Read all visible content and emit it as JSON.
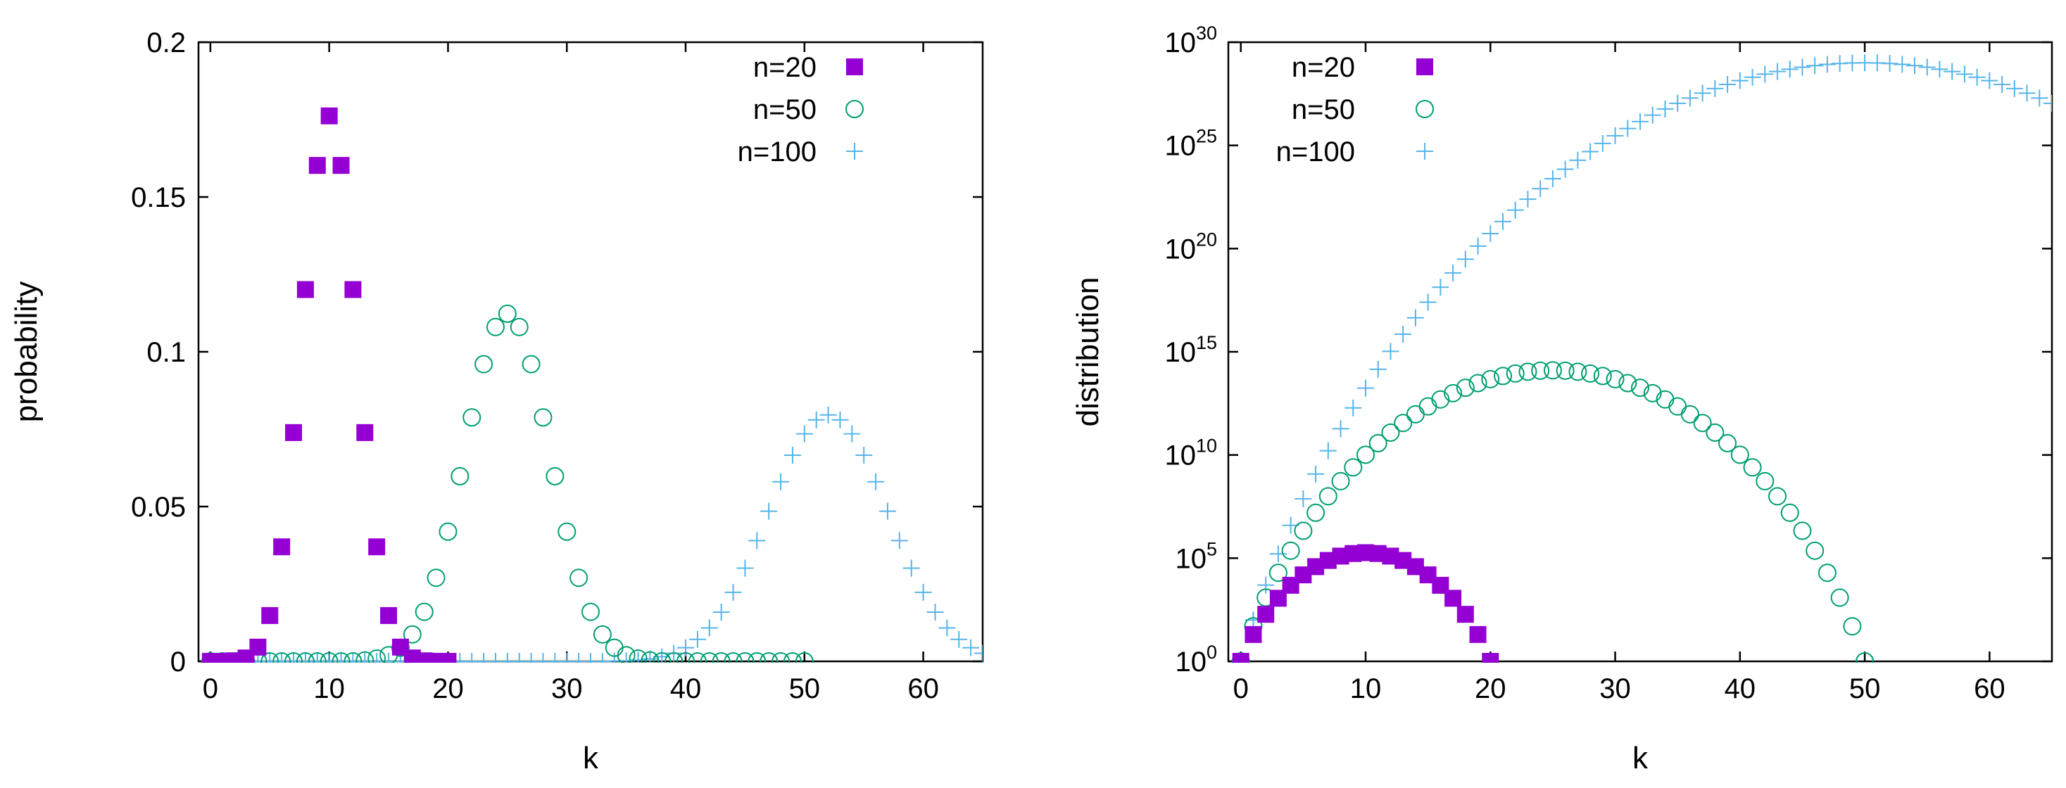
{
  "colors": {
    "n20": "#9400d3",
    "n50": "#009e73",
    "n100": "#56b4e9"
  },
  "chart_data": [
    {
      "type": "scatter",
      "title": "",
      "xlabel": "k",
      "ylabel": "probability",
      "xlim": [
        -1,
        65
      ],
      "ylim": [
        0,
        0.2
      ],
      "x_ticks": [
        "0",
        "10",
        "20",
        "30",
        "40",
        "50",
        "60"
      ],
      "y_ticks": [
        "0",
        "0.05",
        "0.1",
        "0.15",
        "0.2"
      ],
      "legend_position": "top-right",
      "series": [
        {
          "name": "n=20",
          "marker": "filled-square",
          "n": 20,
          "x": [
            0,
            1,
            2,
            3,
            4,
            5,
            6,
            7,
            8,
            9,
            10,
            11,
            12,
            13,
            14,
            15,
            16,
            17,
            18,
            19,
            20
          ],
          "values": [
            1e-06,
            1.9e-05,
            0.00018,
            0.0011,
            0.0046,
            0.0148,
            0.037,
            0.0739,
            0.1201,
            0.1602,
            0.1762,
            0.1602,
            0.1201,
            0.0739,
            0.037,
            0.0148,
            0.0046,
            0.0011,
            0.00018,
            1.9e-05,
            1e-06
          ]
        },
        {
          "name": "n=50",
          "marker": "open-circle",
          "n": 50,
          "x": [
            0,
            1,
            2,
            3,
            4,
            5,
            6,
            7,
            8,
            9,
            10,
            11,
            12,
            13,
            14,
            15,
            16,
            17,
            18,
            19,
            20,
            21,
            22,
            23,
            24,
            25,
            26,
            27,
            28,
            29,
            30,
            31,
            32,
            33,
            34,
            35,
            36,
            37,
            38,
            39,
            40,
            41,
            42,
            43,
            44,
            45,
            46,
            47,
            48,
            49,
            50
          ],
          "values": [
            0,
            0,
            0,
            0,
            0,
            0,
            0,
            0,
            0,
            0,
            0,
            0,
            0,
            0.0003,
            0.0009,
            0.002,
            0.0044,
            0.0087,
            0.016,
            0.027,
            0.0419,
            0.0598,
            0.0788,
            0.096,
            0.108,
            0.1123,
            0.108,
            0.096,
            0.0788,
            0.0598,
            0.0419,
            0.027,
            0.016,
            0.0087,
            0.0044,
            0.002,
            0.0009,
            0.0003,
            0,
            0,
            0,
            0,
            0,
            0,
            0,
            0,
            0,
            0,
            0,
            0,
            0
          ]
        },
        {
          "name": "n=100",
          "marker": "plus",
          "n": 100,
          "x": [
            0,
            1,
            2,
            3,
            4,
            5,
            6,
            7,
            8,
            9,
            10,
            11,
            12,
            13,
            14,
            15,
            16,
            17,
            18,
            19,
            20,
            21,
            22,
            23,
            24,
            25,
            26,
            27,
            28,
            29,
            30,
            31,
            32,
            33,
            34,
            35,
            36,
            37,
            38,
            39,
            40,
            41,
            42,
            43,
            44,
            45,
            46,
            47,
            48,
            49,
            50,
            51,
            52,
            53,
            54,
            55,
            56,
            57,
            58,
            59,
            60,
            61,
            62,
            63,
            64,
            65
          ],
          "values": [
            0,
            0,
            0,
            0,
            0,
            0,
            0,
            0,
            0,
            0,
            0,
            0,
            0,
            0,
            0,
            0,
            0,
            0,
            0,
            0,
            0,
            0,
            0,
            0,
            0,
            0,
            0,
            0,
            0,
            0,
            0,
            0,
            0,
            0,
            0.0001,
            0.0002,
            0.0004,
            0.0008,
            0.0015,
            0.0026,
            0.0044,
            0.0071,
            0.0108,
            0.0159,
            0.0223,
            0.0301,
            0.039,
            0.0485,
            0.058,
            0.0666,
            0.0735,
            0.078,
            0.0796,
            0.078,
            0.0735,
            0.0666,
            0.058,
            0.0485,
            0.039,
            0.0301,
            0.0223,
            0.0159,
            0.0108,
            0.0071,
            0.0044,
            0.0026
          ]
        }
      ]
    },
    {
      "type": "scatter",
      "title": "",
      "xlabel": "k",
      "ylabel": "distribution",
      "yscale": "log",
      "xlim": [
        -1,
        65
      ],
      "ylim": [
        1,
        1e+30
      ],
      "x_ticks": [
        "0",
        "10",
        "20",
        "30",
        "40",
        "50",
        "60"
      ],
      "y_ticks": [
        {
          "base": "10",
          "exp": "0"
        },
        {
          "base": "10",
          "exp": "5"
        },
        {
          "base": "10",
          "exp": "10"
        },
        {
          "base": "10",
          "exp": "15"
        },
        {
          "base": "10",
          "exp": "20"
        },
        {
          "base": "10",
          "exp": "25"
        },
        {
          "base": "10",
          "exp": "30"
        }
      ],
      "legend_position": "top-left",
      "series": [
        {
          "name": "n=20",
          "marker": "filled-square",
          "n": 20,
          "x_range": [
            0,
            20
          ],
          "values": "C(20,k)"
        },
        {
          "name": "n=50",
          "marker": "open-circle",
          "n": 50,
          "x_range": [
            0,
            50
          ],
          "values": "C(50,k)"
        },
        {
          "name": "n=100",
          "marker": "plus",
          "n": 100,
          "x_range": [
            0,
            65
          ],
          "values": "C(100,k)"
        }
      ]
    }
  ]
}
